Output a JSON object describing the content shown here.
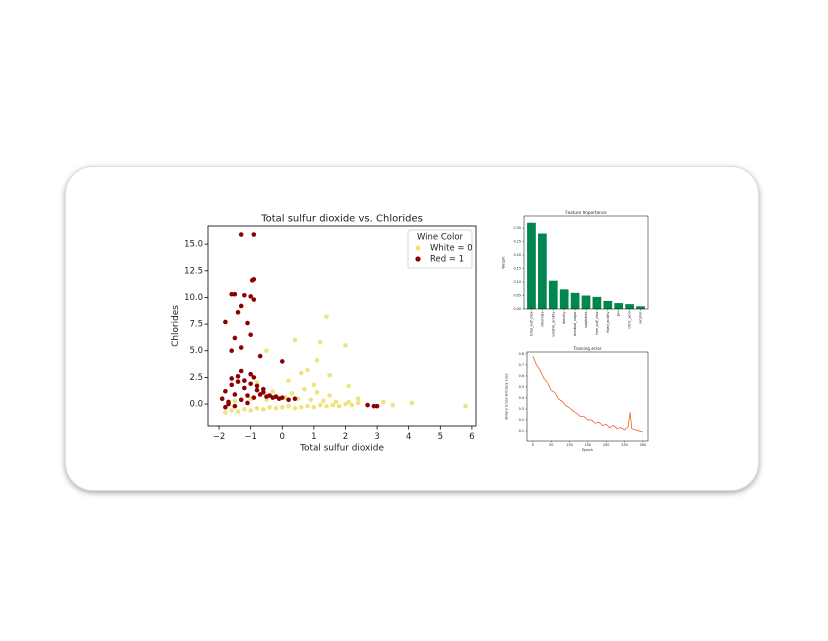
{
  "chart_data": [
    {
      "type": "scatter",
      "title": "Total sulfur dioxide vs. Chlorides",
      "x_label": "Total sulfur dioxide",
      "y_label": "Chlorides",
      "legend_title": "Wine Color",
      "legend": "upper right",
      "xlim": [
        -2.35,
        6.13
      ],
      "ylim": [
        -2.06,
        16.7
      ],
      "xticks": [
        {
          "value": -2,
          "label": "−2"
        },
        {
          "value": -1,
          "label": "−1"
        },
        0,
        1,
        2,
        3,
        4,
        5,
        6
      ],
      "yticks": [
        {
          "value": 0,
          "label": "0.0"
        },
        {
          "value": 2.5,
          "label": "2.5"
        },
        {
          "value": 5,
          "label": "5.0"
        },
        {
          "value": 7.5,
          "label": "7.5"
        },
        {
          "value": 10,
          "label": "10.0"
        },
        {
          "value": 12.5,
          "label": "12.5"
        },
        {
          "value": 15,
          "label": "15.0"
        }
      ],
      "series": [
        {
          "name": "White = 0",
          "color": "#f0e27e",
          "x": [
            -1.8,
            -1.6,
            -1.4,
            -1.2,
            -1.0,
            -0.8,
            -0.6,
            -0.4,
            -0.2,
            0.0,
            0.2,
            0.4,
            0.6,
            0.8,
            1.0,
            1.2,
            1.4,
            1.6,
            1.8,
            2.0,
            2.2,
            2.4,
            -1.5,
            -1.0,
            -0.5,
            0.1,
            0.5,
            0.9,
            1.3,
            1.7,
            2.1,
            -0.3,
            0.3,
            0.7,
            1.1,
            1.5,
            5.8,
            4.1,
            3.5,
            3.2,
            1.4,
            1.2,
            0.4,
            2.0,
            1.1,
            -0.5,
            0.8,
            1.5,
            2.1,
            2.4,
            0.2,
            -0.8,
            1.0,
            0.6
          ],
          "values": [
            -0.8,
            -0.6,
            -0.7,
            -0.5,
            -0.6,
            -0.4,
            -0.5,
            -0.3,
            -0.4,
            -0.3,
            -0.2,
            -0.4,
            -0.3,
            -0.2,
            -0.3,
            -0.1,
            -0.2,
            -0.1,
            -0.2,
            0.0,
            -0.1,
            0.1,
            0.3,
            0.5,
            0.4,
            0.6,
            0.5,
            0.4,
            0.3,
            0.2,
            0.2,
            1.2,
            1.0,
            1.4,
            1.1,
            0.8,
            -0.2,
            0.1,
            -0.1,
            0.2,
            8.2,
            5.8,
            6.0,
            5.5,
            4.1,
            5.0,
            3.2,
            2.7,
            1.7,
            0.5,
            2.2,
            2.0,
            1.8,
            2.9
          ]
        },
        {
          "name": "Red = 1",
          "color": "#8b0000",
          "x": [
            -1.9,
            -1.8,
            -1.7,
            -1.6,
            -1.5,
            -1.4,
            -1.3,
            -1.2,
            -1.1,
            -1.0,
            -0.9,
            -0.8,
            -0.7,
            -0.6,
            -0.5,
            -0.4,
            -0.3,
            -0.2,
            -0.1,
            0.0,
            0.2,
            0.4,
            -1.8,
            -1.6,
            -1.4,
            -1.2,
            -1.0,
            -0.8,
            -0.6,
            -1.7,
            -1.5,
            -1.3,
            -1.1,
            -0.9,
            -1.3,
            -0.9,
            -0.9,
            -0.95,
            -1.5,
            -1.2,
            -1.0,
            -0.9,
            -1.6,
            -1.3,
            -1.4,
            -1.8,
            -1.1,
            -1.0,
            -1.5,
            -1.6,
            -1.3,
            0.0,
            -0.7,
            3.0,
            2.9,
            2.7
          ],
          "values": [
            0.5,
            1.2,
            0.2,
            1.8,
            0.9,
            2.1,
            0.4,
            1.5,
            0.8,
            1.9,
            0.6,
            1.3,
            0.9,
            1.1,
            0.7,
            0.8,
            0.6,
            0.7,
            0.5,
            0.6,
            0.4,
            0.5,
            -0.3,
            2.4,
            2.6,
            2.2,
            2.8,
            1.7,
            1.4,
            0.0,
            -0.2,
            3.1,
            0.1,
            2.5,
            15.9,
            15.9,
            11.7,
            11.6,
            10.3,
            10.2,
            10.1,
            9.8,
            10.3,
            9.2,
            8.6,
            7.7,
            7.6,
            6.5,
            6.2,
            5.0,
            5.3,
            4.0,
            4.5,
            -0.2,
            -0.2,
            -0.1
          ]
        }
      ]
    },
    {
      "type": "bar",
      "title": "Feature Importance",
      "y_label": "Weight",
      "color": "#00874f",
      "categories": [
        "total_sulf_diox",
        "chlorides",
        "volatile_acidity",
        "density",
        "residual_sugar",
        "sulphates",
        "free_sulf_diox",
        "fixed_acidity",
        "pH",
        "citric_acid",
        "alcohol"
      ],
      "values": [
        0.32,
        0.28,
        0.105,
        0.073,
        0.06,
        0.05,
        0.045,
        0.03,
        0.022,
        0.018,
        0.01
      ],
      "ylim": [
        0,
        0.345
      ],
      "yticks": [
        {
          "value": 0,
          "label": "0.00"
        },
        {
          "value": 0.05,
          "label": "0.05"
        },
        {
          "value": 0.1,
          "label": "0.10"
        },
        {
          "value": 0.15,
          "label": "0.15"
        },
        {
          "value": 0.2,
          "label": "0.20"
        },
        {
          "value": 0.25,
          "label": "0.25"
        },
        {
          "value": 0.3,
          "label": "0.30"
        }
      ]
    },
    {
      "type": "line",
      "title": "Training error",
      "x_label": "Epoch",
      "y_label": "Binary Cross Entropy Loss",
      "color": "#f04e0e",
      "x": [
        0,
        10,
        20,
        30,
        40,
        50,
        60,
        70,
        80,
        90,
        100,
        110,
        120,
        130,
        140,
        150,
        160,
        170,
        180,
        190,
        200,
        210,
        220,
        230,
        240,
        250,
        260,
        265,
        270,
        280,
        290,
        300
      ],
      "values": [
        0.78,
        0.7,
        0.65,
        0.58,
        0.54,
        0.47,
        0.45,
        0.39,
        0.37,
        0.33,
        0.31,
        0.28,
        0.26,
        0.23,
        0.23,
        0.2,
        0.2,
        0.17,
        0.18,
        0.15,
        0.16,
        0.13,
        0.15,
        0.12,
        0.13,
        0.11,
        0.14,
        0.27,
        0.12,
        0.11,
        0.1,
        0.09
      ],
      "xlim": [
        -16,
        314
      ],
      "ylim": [
        0.009,
        0.818
      ],
      "xticks": [
        0,
        50,
        100,
        150,
        200,
        250,
        300
      ],
      "yticks": [
        0.1,
        0.2,
        0.3,
        0.4,
        0.5,
        0.6,
        0.7,
        0.8
      ]
    }
  ]
}
